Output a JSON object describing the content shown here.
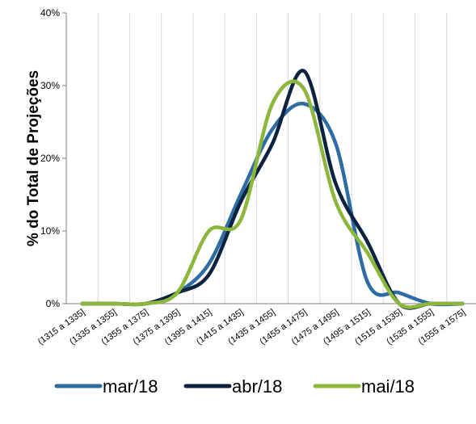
{
  "chart_data": {
    "type": "line",
    "title": "",
    "xlabel": "",
    "ylabel": "% do Total de Projeções",
    "ylim": [
      0,
      40
    ],
    "y_ticks": [
      "0%",
      "10%",
      "20%",
      "30%",
      "40%"
    ],
    "y_tick_values": [
      0,
      10,
      20,
      30,
      40
    ],
    "grid": "vertical",
    "legend_position": "bottom",
    "categories": [
      "(1315 a 1335]",
      "(1335 a 1355]",
      "(1355 a 1375]",
      "(1375 a 1395]",
      "(1395 a 1415]",
      "(1415 a 1435]",
      "(1435 a 1455]",
      "(1455 a 1475]",
      "(1475 a 1495]",
      "(1495 a 1515]",
      "(1515 a 1535]",
      "(1535 a 1555]",
      "(1555 a 1575]"
    ],
    "series": [
      {
        "name": "mar/18",
        "color": "#2E6DA4",
        "values": [
          0,
          0,
          0,
          1.5,
          5.5,
          15,
          24,
          27.5,
          22,
          3,
          1.5,
          0,
          0
        ]
      },
      {
        "name": "abr/18",
        "color": "#0C2340",
        "values": [
          0,
          0,
          0,
          1.5,
          4,
          14,
          22,
          32,
          16.5,
          8.5,
          0,
          0,
          0
        ]
      },
      {
        "name": "mai/18",
        "color": "#8DB63C",
        "values": [
          0,
          0,
          0,
          1.5,
          10,
          11.5,
          27.5,
          29.5,
          14,
          7,
          0,
          0,
          0
        ]
      }
    ]
  }
}
